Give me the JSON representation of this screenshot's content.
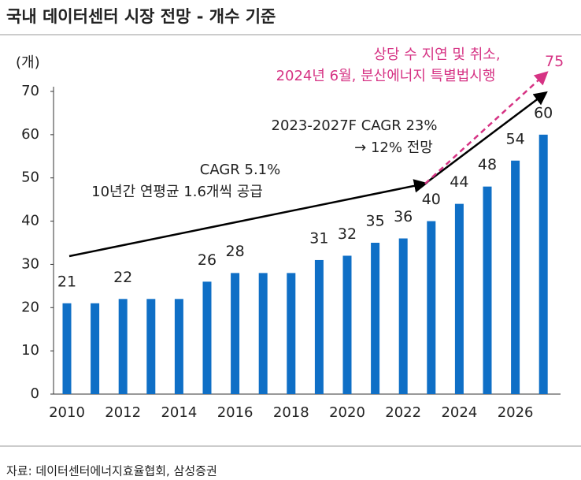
{
  "chart_data": {
    "type": "bar",
    "title": "국내 데이터센터 시장 전망 - 개수 기준",
    "y_unit": "(개)",
    "categories": [
      2010,
      null,
      2012,
      null,
      2014,
      null,
      2016,
      null,
      2018,
      null,
      2020,
      null,
      2022,
      null,
      2024,
      null,
      2026,
      null
    ],
    "values": [
      21,
      21,
      22,
      22,
      22,
      26,
      28,
      28,
      28,
      31,
      32,
      35,
      36,
      40,
      44,
      48,
      54,
      60
    ],
    "value_labels": [
      "21",
      null,
      "22",
      null,
      null,
      "26",
      "28",
      null,
      null,
      "31",
      "32",
      "35",
      "36",
      "40",
      "44",
      "48",
      "54",
      "60"
    ],
    "color": "#0f6fc6",
    "ylim": [
      0,
      70
    ],
    "yticks": [
      0,
      10,
      20,
      30,
      40,
      50,
      60,
      70
    ],
    "annotations": {
      "cagr_past": "CAGR 5.1%",
      "cagr_past_note": "10년간 연평균 1.6개씩 공급",
      "cagr_future": "2023-2027F CAGR 23%",
      "cagr_future_note": "→ 12% 전망",
      "delay_line1": "상당 수 지연  및 취소,",
      "delay_line2": "2024년 6월, 분산에너지 특별법시행",
      "projection": 75
    },
    "source": "자료: 데이터센터에너지효율협회, 삼성증권"
  }
}
